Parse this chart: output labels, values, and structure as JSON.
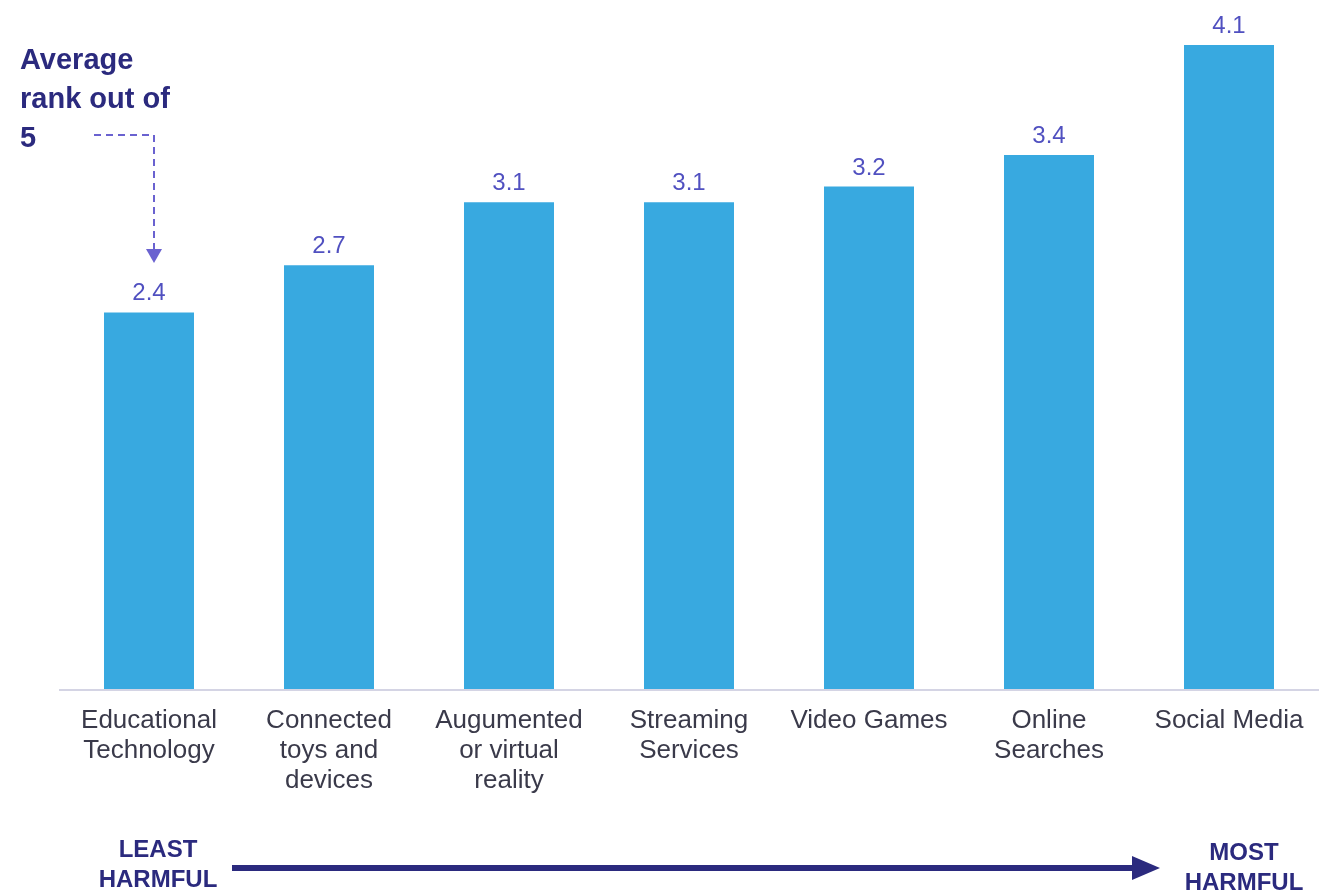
{
  "chart_data": {
    "type": "bar",
    "categories": [
      "Educational Technology",
      "Connected toys and devices",
      "Augumented or virtual reality",
      "Streaming Services",
      "Video Games",
      "Online Searches",
      "Social Media"
    ],
    "values": [
      2.4,
      2.7,
      3.1,
      3.1,
      3.2,
      3.4,
      4.1
    ],
    "color": "#38a9e0",
    "data_labels": true,
    "annotations": [
      "Average rank out of 5",
      "LEAST HARMFUL",
      "MOST HARMFUL"
    ]
  }
}
